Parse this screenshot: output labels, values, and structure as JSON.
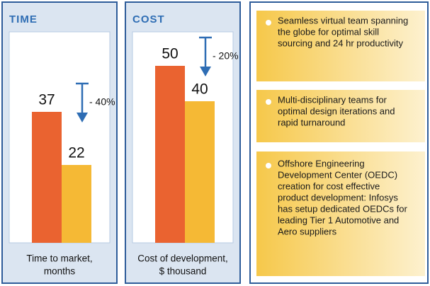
{
  "chart_data": [
    {
      "type": "bar",
      "title": "TIME",
      "categories": [
        null,
        null
      ],
      "values": [
        37,
        22
      ],
      "colors": [
        "#ea6330",
        "#f5b935"
      ],
      "annotation": "- 40%",
      "xlabel": [
        "Time to market,",
        "months"
      ],
      "ylim": [
        0,
        60
      ]
    },
    {
      "type": "bar",
      "title": "COST",
      "categories": [
        null,
        null
      ],
      "values": [
        50,
        40
      ],
      "colors": [
        "#ea6330",
        "#f5b935"
      ],
      "annotation": "- 20%",
      "xlabel": [
        "Cost of development,",
        "$ thousand"
      ],
      "ylim": [
        0,
        60
      ]
    }
  ],
  "bullets": [
    [
      "Seamless virtual team spanning",
      "the globe for optimal skill",
      "sourcing and 24 hr productivity"
    ],
    [
      "Multi-disciplinary teams for",
      "optimal design iterations and",
      "rapid turnaround"
    ],
    [
      "Offshore Engineering",
      "Development Center (OEDC)",
      "creation for cost effective",
      "product development: Infosys",
      "has setup dedicated OEDCs for",
      "leading Tier 1 Automotive and",
      "Aero suppliers"
    ]
  ]
}
